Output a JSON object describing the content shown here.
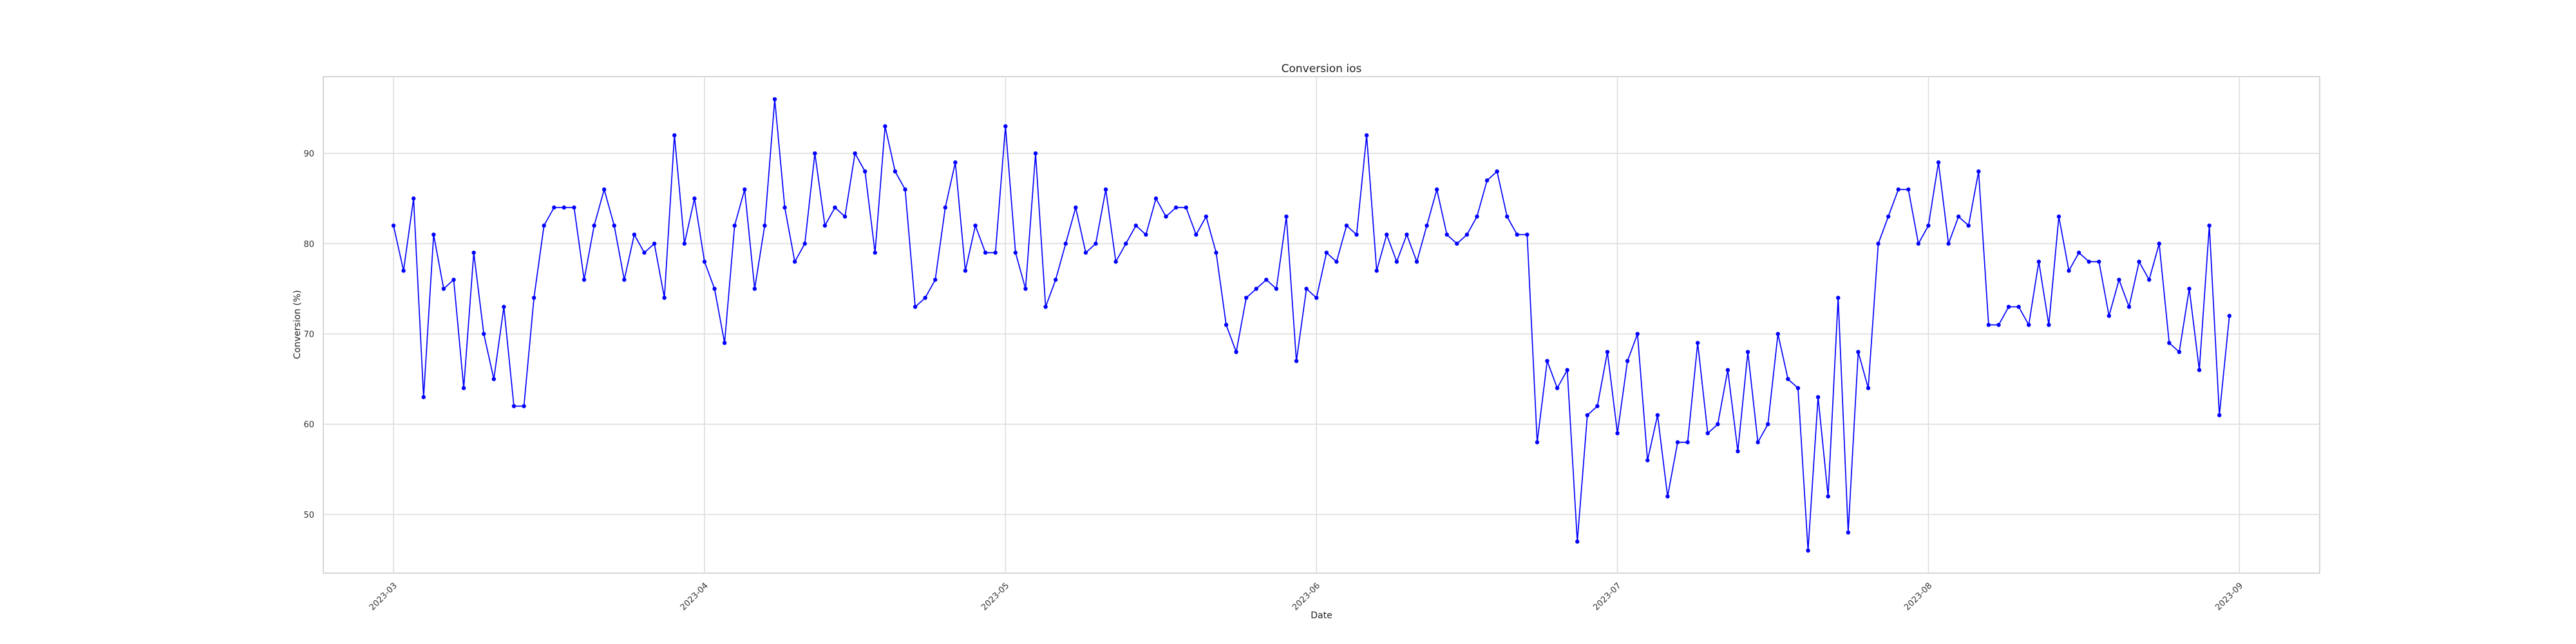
{
  "chart_data": {
    "type": "line",
    "title": "Conversion ios",
    "xlabel": "Date",
    "ylabel": "Conversion (%)",
    "x_tick_labels": [
      "2023-03",
      "2023-04",
      "2023-05",
      "2023-06",
      "2023-07",
      "2023-08",
      "2023-09"
    ],
    "y_tick_labels": [
      "50",
      "60",
      "70",
      "80",
      "90"
    ],
    "xlim": [
      "2023-02-22",
      "2023-09-09"
    ],
    "ylim": [
      43.5,
      98.5
    ],
    "grid": true,
    "legend": "none",
    "series": [
      {
        "color": "#0000ff",
        "marker": "circle",
        "x": [
          "2023-03-01",
          "2023-03-02",
          "2023-03-03",
          "2023-03-04",
          "2023-03-05",
          "2023-03-06",
          "2023-03-07",
          "2023-03-08",
          "2023-03-09",
          "2023-03-10",
          "2023-03-11",
          "2023-03-12",
          "2023-03-13",
          "2023-03-14",
          "2023-03-15",
          "2023-03-16",
          "2023-03-17",
          "2023-03-18",
          "2023-03-19",
          "2023-03-20",
          "2023-03-21",
          "2023-03-22",
          "2023-03-23",
          "2023-03-24",
          "2023-03-25",
          "2023-03-26",
          "2023-03-27",
          "2023-03-28",
          "2023-03-29",
          "2023-03-30",
          "2023-03-31",
          "2023-04-01",
          "2023-04-02",
          "2023-04-03",
          "2023-04-04",
          "2023-04-05",
          "2023-04-06",
          "2023-04-07",
          "2023-04-08",
          "2023-04-09",
          "2023-04-10",
          "2023-04-11",
          "2023-04-12",
          "2023-04-13",
          "2023-04-14",
          "2023-04-15",
          "2023-04-16",
          "2023-04-17",
          "2023-04-18",
          "2023-04-19",
          "2023-04-20",
          "2023-04-21",
          "2023-04-22",
          "2023-04-23",
          "2023-04-24",
          "2023-04-25",
          "2023-04-26",
          "2023-04-27",
          "2023-04-28",
          "2023-04-29",
          "2023-04-30",
          "2023-05-01",
          "2023-05-02",
          "2023-05-03",
          "2023-05-04",
          "2023-05-05",
          "2023-05-06",
          "2023-05-07",
          "2023-05-08",
          "2023-05-09",
          "2023-05-10",
          "2023-05-11",
          "2023-05-12",
          "2023-05-13",
          "2023-05-14",
          "2023-05-15",
          "2023-05-16",
          "2023-05-17",
          "2023-05-18",
          "2023-05-19",
          "2023-05-20",
          "2023-05-21",
          "2023-05-22",
          "2023-05-23",
          "2023-05-24",
          "2023-05-25",
          "2023-05-26",
          "2023-05-27",
          "2023-05-28",
          "2023-05-29",
          "2023-05-30",
          "2023-05-31",
          "2023-06-01",
          "2023-06-02",
          "2023-06-03",
          "2023-06-04",
          "2023-06-05",
          "2023-06-06",
          "2023-06-07",
          "2023-06-08",
          "2023-06-09",
          "2023-06-10",
          "2023-06-11",
          "2023-06-12",
          "2023-06-13",
          "2023-06-14",
          "2023-06-15",
          "2023-06-16",
          "2023-06-17",
          "2023-06-18",
          "2023-06-19",
          "2023-06-20",
          "2023-06-21",
          "2023-06-22",
          "2023-06-23",
          "2023-06-24",
          "2023-06-25",
          "2023-06-26",
          "2023-06-27",
          "2023-06-28",
          "2023-06-29",
          "2023-06-30",
          "2023-07-01",
          "2023-07-02",
          "2023-07-03",
          "2023-07-04",
          "2023-07-05",
          "2023-07-06",
          "2023-07-07",
          "2023-07-08",
          "2023-07-09",
          "2023-07-10",
          "2023-07-11",
          "2023-07-12",
          "2023-07-13",
          "2023-07-14",
          "2023-07-15",
          "2023-07-16",
          "2023-07-17",
          "2023-07-18",
          "2023-07-19",
          "2023-07-20",
          "2023-07-21",
          "2023-07-22",
          "2023-07-23",
          "2023-07-24",
          "2023-07-25",
          "2023-07-26",
          "2023-07-27",
          "2023-07-28",
          "2023-07-29",
          "2023-07-30",
          "2023-07-31",
          "2023-08-01",
          "2023-08-02",
          "2023-08-03",
          "2023-08-04",
          "2023-08-05",
          "2023-08-06",
          "2023-08-07",
          "2023-08-08",
          "2023-08-09",
          "2023-08-10",
          "2023-08-11",
          "2023-08-12",
          "2023-08-13",
          "2023-08-14",
          "2023-08-15",
          "2023-08-16",
          "2023-08-17",
          "2023-08-18",
          "2023-08-19",
          "2023-08-20",
          "2023-08-21",
          "2023-08-22",
          "2023-08-23",
          "2023-08-24",
          "2023-08-25",
          "2023-08-26",
          "2023-08-27",
          "2023-08-28",
          "2023-08-29",
          "2023-08-30",
          "2023-08-31"
        ],
        "y": [
          82,
          77,
          85,
          63,
          81,
          75,
          76,
          64,
          79,
          70,
          65,
          73,
          62,
          62,
          74,
          82,
          84,
          84,
          84,
          76,
          82,
          86,
          82,
          76,
          81,
          79,
          80,
          74,
          92,
          80,
          85,
          78,
          75,
          69,
          82,
          86,
          75,
          82,
          96,
          84,
          78,
          80,
          90,
          82,
          84,
          83,
          90,
          88,
          79,
          93,
          88,
          86,
          73,
          74,
          76,
          84,
          89,
          77,
          82,
          79,
          79,
          93,
          79,
          75,
          90,
          73,
          76,
          80,
          84,
          79,
          80,
          86,
          78,
          80,
          82,
          81,
          85,
          83,
          84,
          84,
          81,
          83,
          79,
          71,
          68,
          74,
          75,
          76,
          75,
          83,
          67,
          75,
          74,
          79,
          78,
          82,
          81,
          92,
          77,
          81,
          78,
          81,
          78,
          82,
          86,
          81,
          80,
          81,
          83,
          87,
          88,
          83,
          81,
          81,
          58,
          67,
          64,
          66,
          47,
          61,
          62,
          68,
          59,
          67,
          70,
          56,
          61,
          52,
          58,
          58,
          69,
          59,
          60,
          66,
          57,
          68,
          58,
          60,
          70,
          65,
          64,
          46,
          63,
          52,
          74,
          48,
          68,
          64,
          80,
          83,
          86,
          86,
          80,
          82,
          89,
          80,
          83,
          82,
          88,
          71,
          71,
          73,
          73,
          71,
          78,
          71,
          83,
          77,
          79,
          78,
          78,
          72,
          76,
          73,
          78,
          76,
          80,
          69,
          68,
          75,
          66,
          82,
          61,
          72
        ]
      }
    ]
  }
}
